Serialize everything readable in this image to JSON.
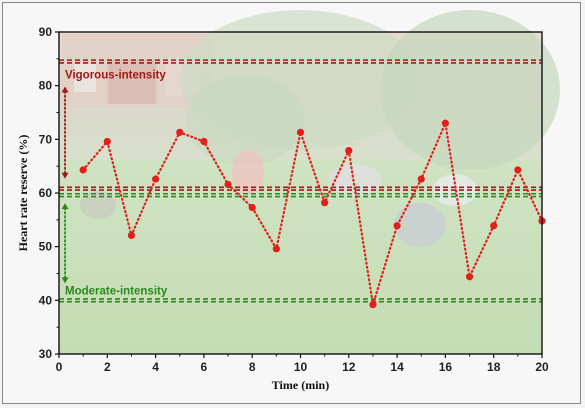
{
  "chart_data": {
    "type": "line",
    "xlabel": "Time (min)",
    "ylabel": "Heart rate reserve (%)",
    "xlim": [
      0,
      20
    ],
    "ylim": [
      30,
      90
    ],
    "xticks": [
      0,
      2,
      4,
      6,
      8,
      10,
      12,
      14,
      16,
      18,
      20
    ],
    "yticks": [
      30,
      40,
      50,
      60,
      70,
      80,
      90
    ],
    "series": [
      {
        "x": [
          1,
          2,
          3,
          4,
          5,
          6,
          7,
          8,
          9,
          10,
          11,
          12,
          13,
          14,
          15,
          16,
          17,
          18,
          19,
          20
        ],
        "values": [
          64.3,
          69.6,
          52.1,
          62.6,
          71.3,
          69.6,
          61.6,
          57.3,
          49.6,
          71.3,
          58.2,
          67.9,
          39.2,
          53.9,
          62.6,
          73.0,
          44.4,
          53.9,
          64.3,
          54.8
        ],
        "color": "#e0211b",
        "style": "dotted-with-markers"
      }
    ],
    "reference_lines": [
      {
        "y": 84.5,
        "color": "#a01818",
        "style": "dashed"
      },
      {
        "y": 60.8,
        "color": "#a01818",
        "style": "dashed"
      },
      {
        "y": 59.6,
        "color": "#2a8a1e",
        "style": "dashed"
      },
      {
        "y": 40.0,
        "color": "#2a8a1e",
        "style": "dashed"
      }
    ],
    "annotations": [
      {
        "text": "Vigorous-intensity",
        "color": "#a01818",
        "range": [
          60.8,
          84.5
        ]
      },
      {
        "text": "Moderate-intensity",
        "color": "#2a8a1e",
        "range": [
          40.0,
          59.6
        ]
      }
    ],
    "background": "faded-photo",
    "grid": false,
    "legend": "none"
  }
}
